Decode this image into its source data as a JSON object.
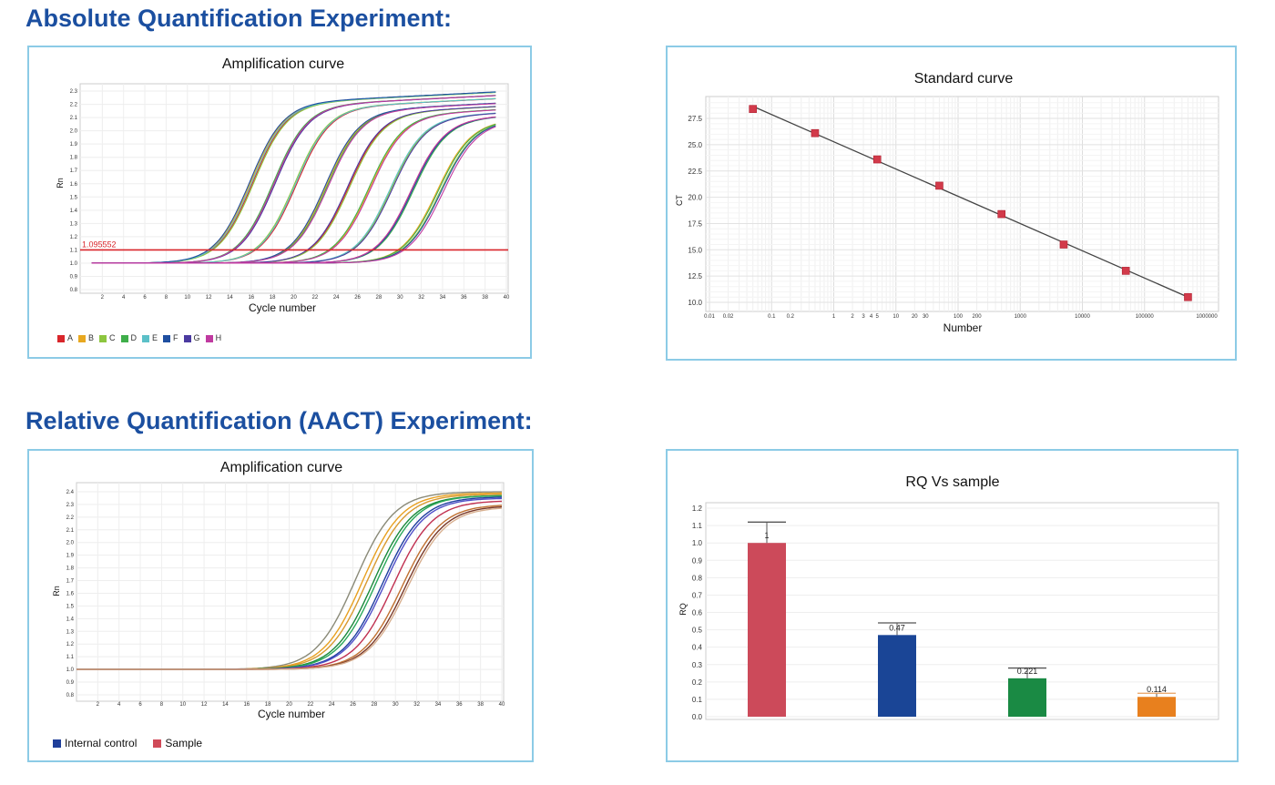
{
  "headings": {
    "absolute": "Absolute Quantification Experiment:",
    "relative": "Relative Quantification (AACT) Experiment:"
  },
  "colors": {
    "heading": "#1b4fa0",
    "panel_border": "#8ccbe6",
    "threshold": "#d9262b"
  },
  "chart_data": [
    {
      "type": "line",
      "title": "Amplification curve",
      "xlabel": "Cycle number",
      "ylabel": "Rn",
      "xlim": [
        0,
        40
      ],
      "ylim": [
        0.8,
        2.35
      ],
      "xticks": [
        2,
        4,
        6,
        8,
        10,
        12,
        14,
        16,
        18,
        20,
        22,
        24,
        26,
        28,
        30,
        32,
        34,
        36,
        38,
        40
      ],
      "yticks": [
        "0.8",
        "0.9",
        "1.0",
        "1.1",
        "1.2",
        "1.3",
        "1.4",
        "1.5",
        "1.6",
        "1.7",
        "1.8",
        "1.9",
        "2.0",
        "2.1",
        "2.2",
        "2.3"
      ],
      "threshold": 1.1,
      "threshold_label": "1.095552",
      "baseline": 1.0,
      "grid": true,
      "legend_position": "bottom-left",
      "series": [
        {
          "name": "A",
          "color": "#d9262b",
          "midpoints": [
            16.1,
            20.2,
            25.1,
            31.0
          ]
        },
        {
          "name": "B",
          "color": "#e8a820",
          "midpoints": [
            15.9,
            18.1,
            23.0,
            27.1,
            33.4
          ]
        },
        {
          "name": "C",
          "color": "#8dc63f",
          "midpoints": [
            16.2,
            20.0,
            25.2,
            29.1,
            33.7
          ]
        },
        {
          "name": "D",
          "color": "#3fae4a",
          "midpoints": [
            18.0,
            23.1,
            27.0,
            31.2,
            33.5
          ]
        },
        {
          "name": "E",
          "color": "#5bc0c8",
          "midpoints": [
            16.0,
            20.1,
            29.0
          ]
        },
        {
          "name": "F",
          "color": "#1f4fa0",
          "midpoints": [
            15.8,
            22.9,
            31.1,
            33.8
          ]
        },
        {
          "name": "G",
          "color": "#4b3aa0",
          "midpoints": [
            18.2,
            25.0,
            29.2
          ]
        },
        {
          "name": "H",
          "color": "#c03aa0",
          "midpoints": [
            18.1,
            23.2,
            27.2,
            31.0,
            34.0
          ]
        }
      ]
    },
    {
      "type": "scatter",
      "title": "Standard curve",
      "xlabel": "Number",
      "ylabel": "CT",
      "xscale": "log",
      "xlim": [
        0.01,
        1000000
      ],
      "ylim": [
        9.5,
        29.5
      ],
      "xticks": [
        "0.01",
        "0.02",
        "0.1",
        "0.2",
        "1",
        "2",
        "3",
        "4",
        "5",
        "10",
        "20",
        "30",
        "100",
        "200",
        "1000",
        "10000",
        "100000",
        "1000000"
      ],
      "yticks": [
        "10.0",
        "12.5",
        "15.0",
        "17.5",
        "20.0",
        "22.5",
        "25.0",
        "27.5"
      ],
      "grid": true,
      "points": [
        {
          "x": 0.05,
          "y": 28.4
        },
        {
          "x": 0.5,
          "y": 26.1
        },
        {
          "x": 5,
          "y": 23.6
        },
        {
          "x": 50,
          "y": 21.1
        },
        {
          "x": 500,
          "y": 18.4
        },
        {
          "x": 5000,
          "y": 15.5
        },
        {
          "x": 50000,
          "y": 13.0
        },
        {
          "x": 500000,
          "y": 10.5
        }
      ],
      "fit_line": true,
      "point_color": "#d23a4a"
    },
    {
      "type": "line",
      "title": "Amplification curve",
      "xlabel": "Cycle number",
      "ylabel": "Rn",
      "xlim": [
        0,
        40
      ],
      "ylim": [
        0.8,
        2.45
      ],
      "xticks": [
        2,
        4,
        6,
        8,
        10,
        12,
        14,
        16,
        18,
        20,
        22,
        24,
        26,
        28,
        30,
        32,
        34,
        36,
        38,
        40
      ],
      "yticks": [
        "0.8",
        "0.9",
        "1.0",
        "1.1",
        "1.2",
        "1.3",
        "1.4",
        "1.5",
        "1.6",
        "1.7",
        "1.8",
        "1.9",
        "2.0",
        "2.1",
        "2.2",
        "2.3",
        "2.4"
      ],
      "grid": true,
      "legend": [
        {
          "name": "Internal control",
          "color": "#1f3f9a"
        },
        {
          "name": "Sample",
          "color": "#d04a58"
        }
      ],
      "curves": [
        {
          "color": "#8a8a78",
          "midpoint": 26.2,
          "plateau": 1.4
        },
        {
          "color": "#e8a020",
          "midpoint": 26.9,
          "plateau": 1.39
        },
        {
          "color": "#d89a30",
          "midpoint": 27.3,
          "plateau": 1.38
        },
        {
          "color": "#1a8a3a",
          "midpoint": 27.9,
          "plateau": 1.37
        },
        {
          "color": "#2aa85a",
          "midpoint": 28.2,
          "plateau": 1.37
        },
        {
          "color": "#1f3fa0",
          "midpoint": 28.8,
          "plateau": 1.36
        },
        {
          "color": "#5050c8",
          "midpoint": 29.0,
          "plateau": 1.35
        },
        {
          "color": "#c03050",
          "midpoint": 29.8,
          "plateau": 1.33
        },
        {
          "color": "#c07030",
          "midpoint": 30.6,
          "plateau": 1.3
        },
        {
          "color": "#7a3a2a",
          "midpoint": 30.9,
          "plateau": 1.29
        },
        {
          "color": "#d8b090",
          "midpoint": 31.1,
          "plateau": 1.28
        }
      ]
    },
    {
      "type": "bar",
      "title": "RQ Vs sample",
      "xlabel": "",
      "ylabel": "RQ",
      "ylim": [
        0,
        1.2
      ],
      "yticks": [
        "0.0",
        "0.1",
        "0.2",
        "0.3",
        "0.4",
        "0.5",
        "0.6",
        "0.7",
        "0.8",
        "0.9",
        "1.0",
        "1.1",
        "1.2"
      ],
      "grid": true,
      "values": [
        1.0,
        0.47,
        0.221,
        0.114
      ],
      "labels": [
        "1",
        "0.47",
        "0.221",
        "0.114"
      ],
      "error_upper": [
        1.12,
        0.54,
        0.28,
        0.135
      ],
      "colors": [
        "#cc4a5a",
        "#1a4596",
        "#1a8a44",
        "#e8801e"
      ]
    }
  ]
}
